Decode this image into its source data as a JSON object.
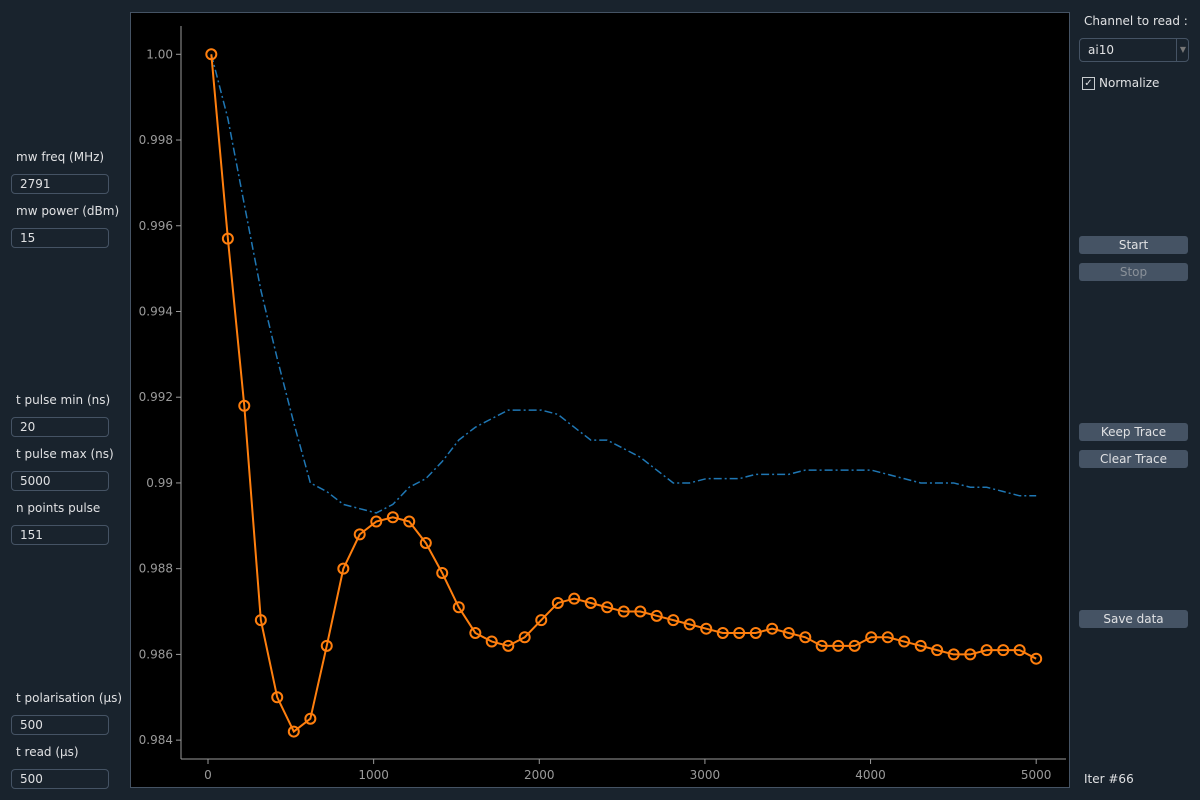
{
  "left_panel": {
    "fields": [
      {
        "label": "mw freq (MHz)",
        "value": "2791"
      },
      {
        "label": "mw power (dBm)",
        "value": "15"
      },
      {
        "label": "t pulse min (ns)",
        "value": "20"
      },
      {
        "label": "t pulse max (ns)",
        "value": "5000"
      },
      {
        "label": "n points pulse",
        "value": "151"
      },
      {
        "label": "t polarisation (μs)",
        "value": "500"
      },
      {
        "label": "t read (μs)",
        "value": "500"
      }
    ]
  },
  "right_panel": {
    "channel_label": "Channel to read :",
    "channel_value": "ai10",
    "normalize": "Normalize",
    "buttons": {
      "start": "Start",
      "stop": "Stop",
      "keep_trace": "Keep Trace",
      "clear_trace": "Clear Trace",
      "save_data": "Save data"
    },
    "iteration": "Iter #66"
  },
  "chart_data": {
    "type": "line",
    "x": [
      20,
      120,
      219,
      319,
      418,
      518,
      618,
      717,
      817,
      916,
      1016,
      1116,
      1215,
      1315,
      1414,
      1514,
      1614,
      1713,
      1813,
      1912,
      2012,
      2112,
      2211,
      2311,
      2410,
      2510,
      2610,
      2709,
      2809,
      2908,
      3008,
      3108,
      3207,
      3307,
      3406,
      3506,
      3606,
      3705,
      3805,
      3904,
      4004,
      4104,
      4203,
      4303,
      4402,
      4502,
      4602,
      4701,
      4801,
      4900,
      5000
    ],
    "series": [
      {
        "color": "#1f77b4",
        "linestyle": "dashdot",
        "marker": "none",
        "values": [
          1.0,
          0.9985,
          0.9965,
          0.9945,
          0.9929,
          0.9914,
          0.99,
          0.9898,
          0.9895,
          0.9894,
          0.9893,
          0.9895,
          0.9899,
          0.9901,
          0.9905,
          0.991,
          0.9913,
          0.9915,
          0.9917,
          0.9917,
          0.9917,
          0.9916,
          0.9913,
          0.991,
          0.991,
          0.9908,
          0.9906,
          0.9903,
          0.99,
          0.99,
          0.9901,
          0.9901,
          0.9901,
          0.9902,
          0.9902,
          0.9902,
          0.9903,
          0.9903,
          0.9903,
          0.9903,
          0.9903,
          0.9902,
          0.9901,
          0.99,
          0.99,
          0.99,
          0.9899,
          0.9899,
          0.9898,
          0.9897,
          0.9897
        ]
      },
      {
        "color": "#ff7f0e",
        "linestyle": "solid",
        "marker": "circle",
        "values": [
          1.0,
          0.9957,
          0.9918,
          0.9868,
          0.985,
          0.9842,
          0.9845,
          0.9862,
          0.988,
          0.9888,
          0.9891,
          0.9892,
          0.9891,
          0.9886,
          0.9879,
          0.9871,
          0.9865,
          0.9863,
          0.9862,
          0.9864,
          0.9868,
          0.9872,
          0.9873,
          0.9872,
          0.9871,
          0.987,
          0.987,
          0.9869,
          0.9868,
          0.9867,
          0.9866,
          0.9865,
          0.9865,
          0.9865,
          0.9866,
          0.9865,
          0.9864,
          0.9862,
          0.9862,
          0.9862,
          0.9864,
          0.9864,
          0.9863,
          0.9862,
          0.9861,
          0.986,
          0.986,
          0.9861,
          0.9861,
          0.9861,
          0.9859
        ]
      }
    ],
    "xlim": [
      -163,
      5180
    ],
    "ylim": [
      0.98356,
      1.00066
    ],
    "xticks": [
      0,
      1000,
      2000,
      3000,
      4000,
      5000
    ],
    "yticks": [
      0.984,
      0.986,
      0.988,
      {
        "value": 0.99,
        "label": "0.99"
      },
      0.992,
      0.994,
      0.996,
      0.998,
      {
        "value": 1,
        "label": "1.00"
      }
    ]
  }
}
